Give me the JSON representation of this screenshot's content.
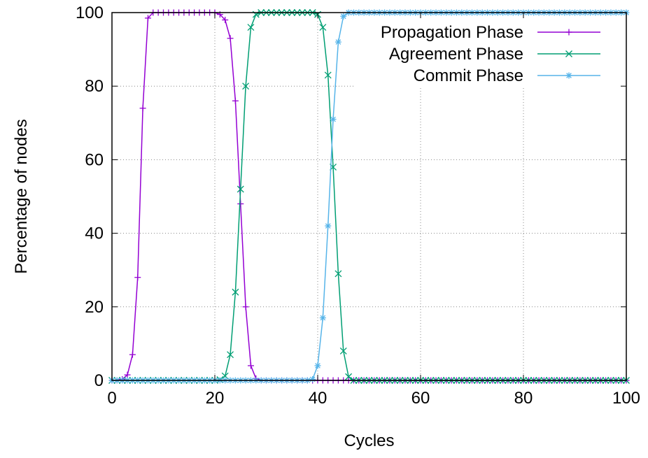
{
  "chart_data": {
    "type": "line",
    "title": "",
    "xlabel": "Cycles",
    "ylabel": "Percentage of nodes",
    "xlim": [
      0,
      100
    ],
    "ylim": [
      0,
      100
    ],
    "x_ticks": [
      "0",
      "20",
      "40",
      "60",
      "80",
      "100"
    ],
    "y_ticks": [
      "0",
      "20",
      "40",
      "60",
      "80",
      "100"
    ],
    "grid": true,
    "legend_position": "top-right",
    "x": [
      0,
      1,
      2,
      3,
      4,
      5,
      6,
      7,
      8,
      9,
      10,
      11,
      12,
      13,
      14,
      15,
      16,
      17,
      18,
      19,
      20,
      21,
      22,
      23,
      24,
      25,
      26,
      27,
      28,
      29,
      30,
      31,
      32,
      33,
      34,
      35,
      36,
      37,
      38,
      39,
      40,
      41,
      42,
      43,
      44,
      45,
      46,
      47,
      48,
      49,
      50,
      51,
      52,
      53,
      54,
      55,
      56,
      57,
      58,
      59,
      60,
      61,
      62,
      63,
      64,
      65,
      66,
      67,
      68,
      69,
      70,
      71,
      72,
      73,
      74,
      75,
      76,
      77,
      78,
      79,
      80,
      81,
      82,
      83,
      84,
      85,
      86,
      87,
      88,
      89,
      90,
      91,
      92,
      93,
      94,
      95,
      96,
      97,
      98,
      99,
      100
    ],
    "series": [
      {
        "name": "Propagation Phase",
        "color": "#9400d3",
        "marker": "plus",
        "values": [
          0,
          0,
          0.3,
          1.5,
          7,
          28,
          74,
          98.5,
          100,
          100,
          100,
          100,
          100,
          100,
          100,
          100,
          100,
          100,
          100,
          100,
          100,
          99.5,
          98,
          93,
          76,
          48,
          20,
          4,
          0.5,
          0,
          0,
          0,
          0,
          0,
          0,
          0,
          0,
          0,
          0,
          0,
          0,
          0,
          0,
          0,
          0,
          0,
          0,
          0,
          0,
          0,
          0,
          0,
          0,
          0,
          0,
          0,
          0,
          0,
          0,
          0,
          0,
          0,
          0,
          0,
          0,
          0,
          0,
          0,
          0,
          0,
          0,
          0,
          0,
          0,
          0,
          0,
          0,
          0,
          0,
          0,
          0,
          0,
          0,
          0,
          0,
          0,
          0,
          0,
          0,
          0,
          0,
          0,
          0,
          0,
          0,
          0,
          0,
          0,
          0,
          0,
          0
        ]
      },
      {
        "name": "Agreement Phase",
        "color": "#009e73",
        "marker": "cross",
        "values": [
          0,
          0,
          0,
          0,
          0,
          0,
          0,
          0,
          0,
          0,
          0,
          0,
          0,
          0,
          0,
          0,
          0,
          0,
          0,
          0,
          0,
          0.2,
          1.2,
          7,
          24,
          52,
          80,
          96,
          99.5,
          100,
          100,
          100,
          100,
          100,
          100,
          100,
          100,
          100,
          100,
          100,
          99.5,
          96,
          83,
          58,
          29,
          8,
          1,
          0,
          0,
          0,
          0,
          0,
          0,
          0,
          0,
          0,
          0,
          0,
          0,
          0,
          0,
          0,
          0,
          0,
          0,
          0,
          0,
          0,
          0,
          0,
          0,
          0,
          0,
          0,
          0,
          0,
          0,
          0,
          0,
          0,
          0,
          0,
          0,
          0,
          0,
          0,
          0,
          0,
          0,
          0,
          0,
          0,
          0,
          0,
          0,
          0,
          0,
          0,
          0,
          0,
          0
        ]
      },
      {
        "name": "Commit Phase",
        "color": "#56b4e9",
        "marker": "star",
        "values": [
          0,
          0,
          0,
          0,
          0,
          0,
          0,
          0,
          0,
          0,
          0,
          0,
          0,
          0,
          0,
          0,
          0,
          0,
          0,
          0,
          0,
          0,
          0,
          0,
          0,
          0,
          0,
          0,
          0,
          0,
          0,
          0,
          0,
          0,
          0,
          0,
          0,
          0,
          0,
          0.3,
          4,
          17,
          42,
          71,
          92,
          99,
          100,
          100,
          100,
          100,
          100,
          100,
          100,
          100,
          100,
          100,
          100,
          100,
          100,
          100,
          100,
          100,
          100,
          100,
          100,
          100,
          100,
          100,
          100,
          100,
          100,
          100,
          100,
          100,
          100,
          100,
          100,
          100,
          100,
          100,
          100,
          100,
          100,
          100,
          100,
          100,
          100,
          100,
          100,
          100,
          100,
          100,
          100,
          100,
          100,
          100,
          100,
          100,
          100,
          100,
          100
        ]
      }
    ]
  }
}
